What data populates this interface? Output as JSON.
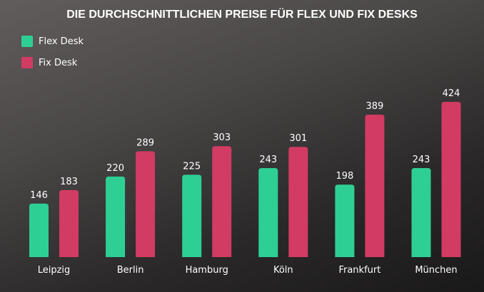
{
  "chart_data": {
    "type": "bar",
    "title": "DIE DURCHSCHNITTLICHEN PREISE FÜR FLEX UND FIX DESKS",
    "categories": [
      "Leipzig",
      "Berlin",
      "Hamburg",
      "Köln",
      "Frankfurt",
      "München"
    ],
    "series": [
      {
        "name": "Flex Desk",
        "color": "#2ecf95",
        "values": [
          146,
          220,
          225,
          243,
          198,
          243
        ]
      },
      {
        "name": "Fix Desk",
        "color": "#d23b63",
        "values": [
          183,
          289,
          303,
          301,
          389,
          424
        ]
      }
    ],
    "legend": "top-left",
    "grid": false,
    "ylim": [
      0,
      424
    ]
  }
}
